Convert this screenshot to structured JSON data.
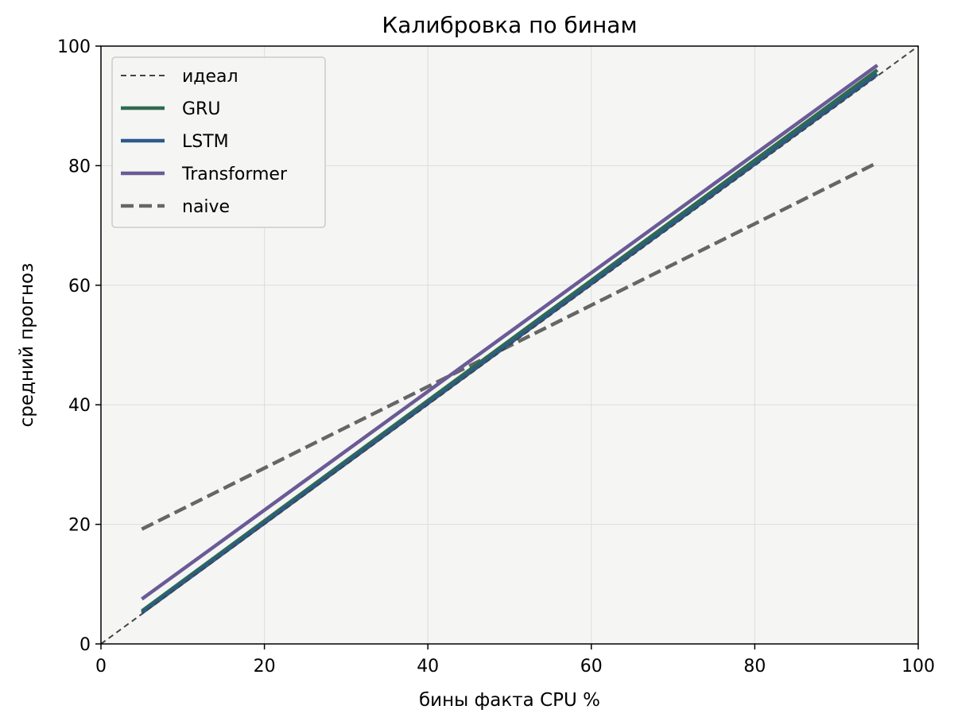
{
  "chart_data": {
    "type": "line",
    "title": "Калибровка по бинам",
    "xlabel": "бины факта CPU %",
    "ylabel": "средний прогноз",
    "xlim": [
      0,
      100
    ],
    "ylim": [
      0,
      100
    ],
    "xticks": [
      0,
      20,
      40,
      60,
      80,
      100
    ],
    "yticks": [
      0,
      20,
      40,
      60,
      80,
      100
    ],
    "grid": true,
    "background": "#f5f5f4",
    "legend_position": "upper-left",
    "series": [
      {
        "name": "идеал",
        "x": [
          0,
          100
        ],
        "y": [
          0,
          100
        ],
        "color": "#444444",
        "style": "dashed-thin"
      },
      {
        "name": "GRU",
        "x": [
          5,
          95
        ],
        "y": [
          5.5,
          96.0
        ],
        "color": "#2e6b4f",
        "style": "solid"
      },
      {
        "name": "LSTM",
        "x": [
          5,
          95
        ],
        "y": [
          5.2,
          95.3
        ],
        "color": "#2a5b8a",
        "style": "solid"
      },
      {
        "name": "Transformer",
        "x": [
          5,
          95
        ],
        "y": [
          7.5,
          96.8
        ],
        "color": "#6a5b96",
        "style": "solid"
      },
      {
        "name": "naive",
        "x": [
          5,
          95
        ],
        "y": [
          19.2,
          80.5
        ],
        "color": "#666666",
        "style": "dashed-thick"
      }
    ]
  }
}
